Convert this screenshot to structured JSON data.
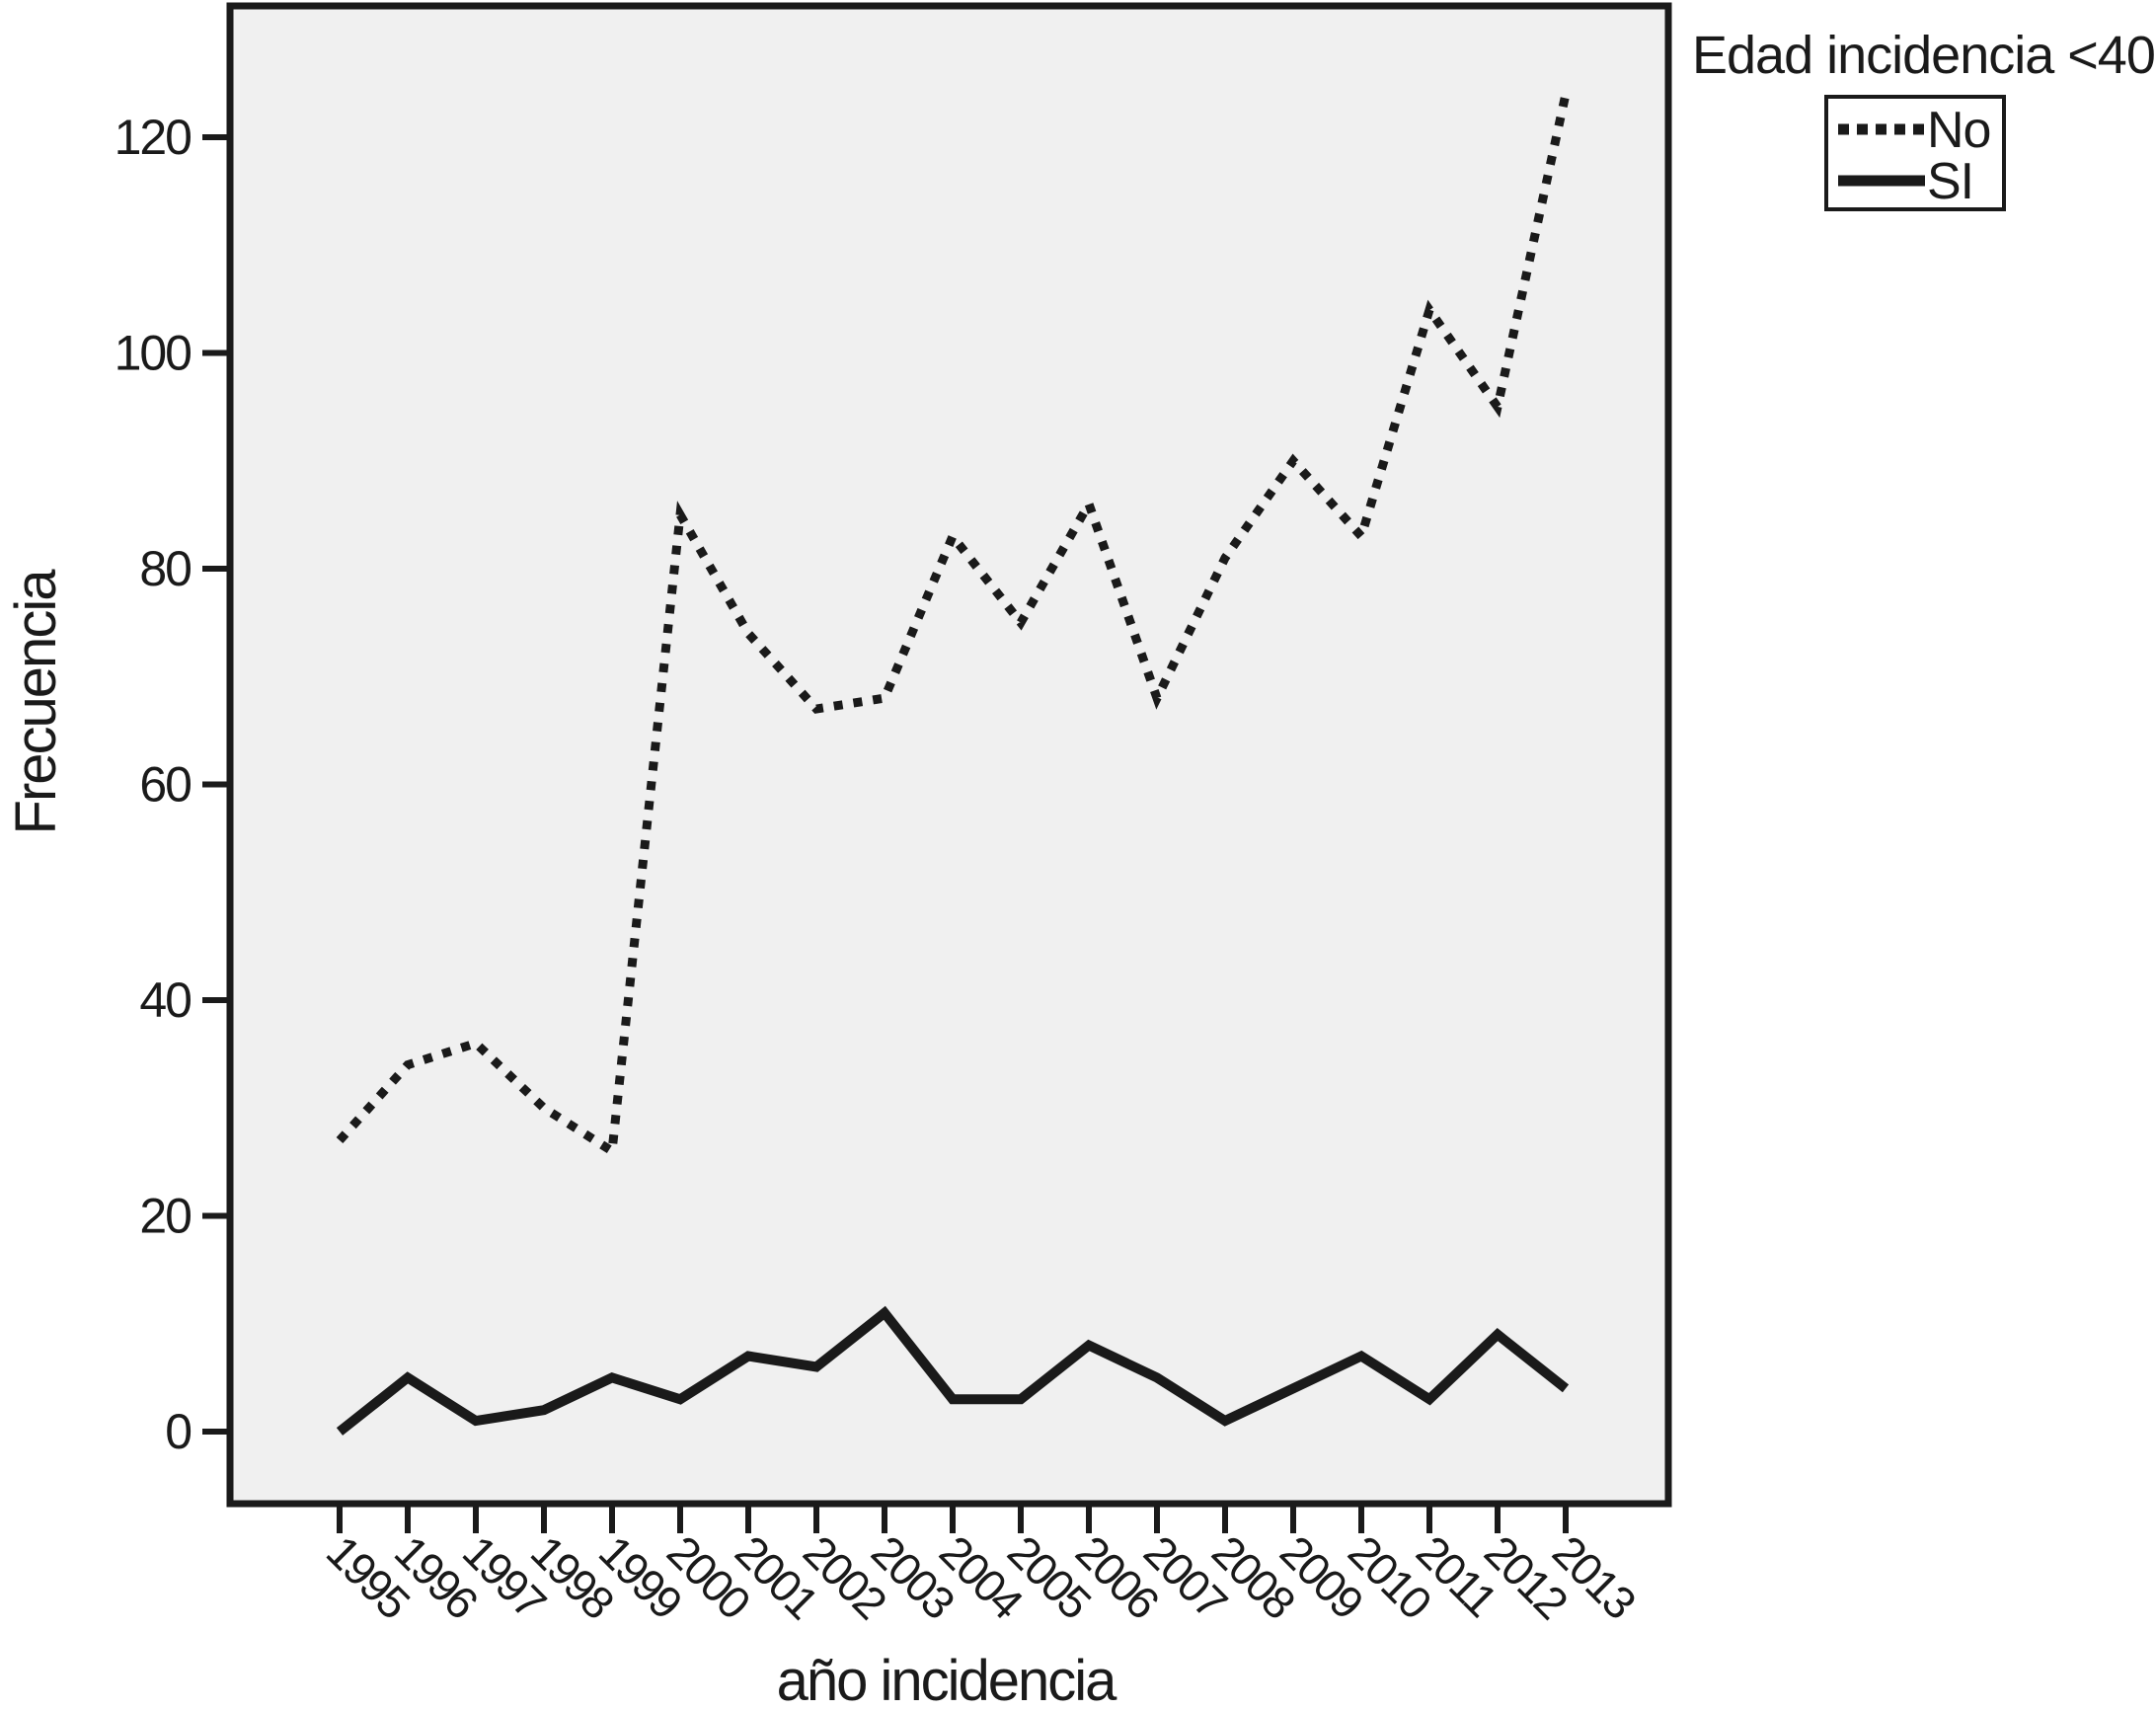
{
  "figure": {
    "y_axis_title": "Frecuencia",
    "x_axis_title": "año incidencia",
    "legend_title": "Edad incidencia <40",
    "colors": {
      "line": "#1a1a1a",
      "plot_background": "#f0f0f0",
      "page_background": "#ffffff"
    }
  },
  "chart_data": {
    "type": "line",
    "title": "",
    "xlabel": "año incidencia",
    "ylabel": "Frecuencia",
    "x": [
      "1995",
      "1996",
      "1997",
      "1998",
      "1999",
      "2000",
      "2001",
      "2002",
      "2003",
      "2004",
      "2005",
      "2006",
      "2007",
      "2008",
      "2009",
      "2010",
      "2011",
      "2012",
      "2013"
    ],
    "series": [
      {
        "name": "No",
        "style": "dotted",
        "values": [
          27,
          34,
          36,
          30,
          26,
          85,
          74,
          67,
          68,
          83,
          75,
          86,
          68,
          81,
          90,
          83,
          104,
          95,
          124
        ]
      },
      {
        "name": "SI",
        "style": "solid",
        "values": [
          0,
          5,
          1,
          2,
          5,
          3,
          7,
          6,
          11,
          3,
          3,
          8,
          5,
          1,
          4,
          7,
          3,
          9,
          4
        ]
      }
    ],
    "ylim": [
      0,
      120
    ],
    "yticks": [
      0,
      20,
      40,
      60,
      80,
      100,
      120
    ],
    "legend_position": "top-right",
    "grid": false
  }
}
